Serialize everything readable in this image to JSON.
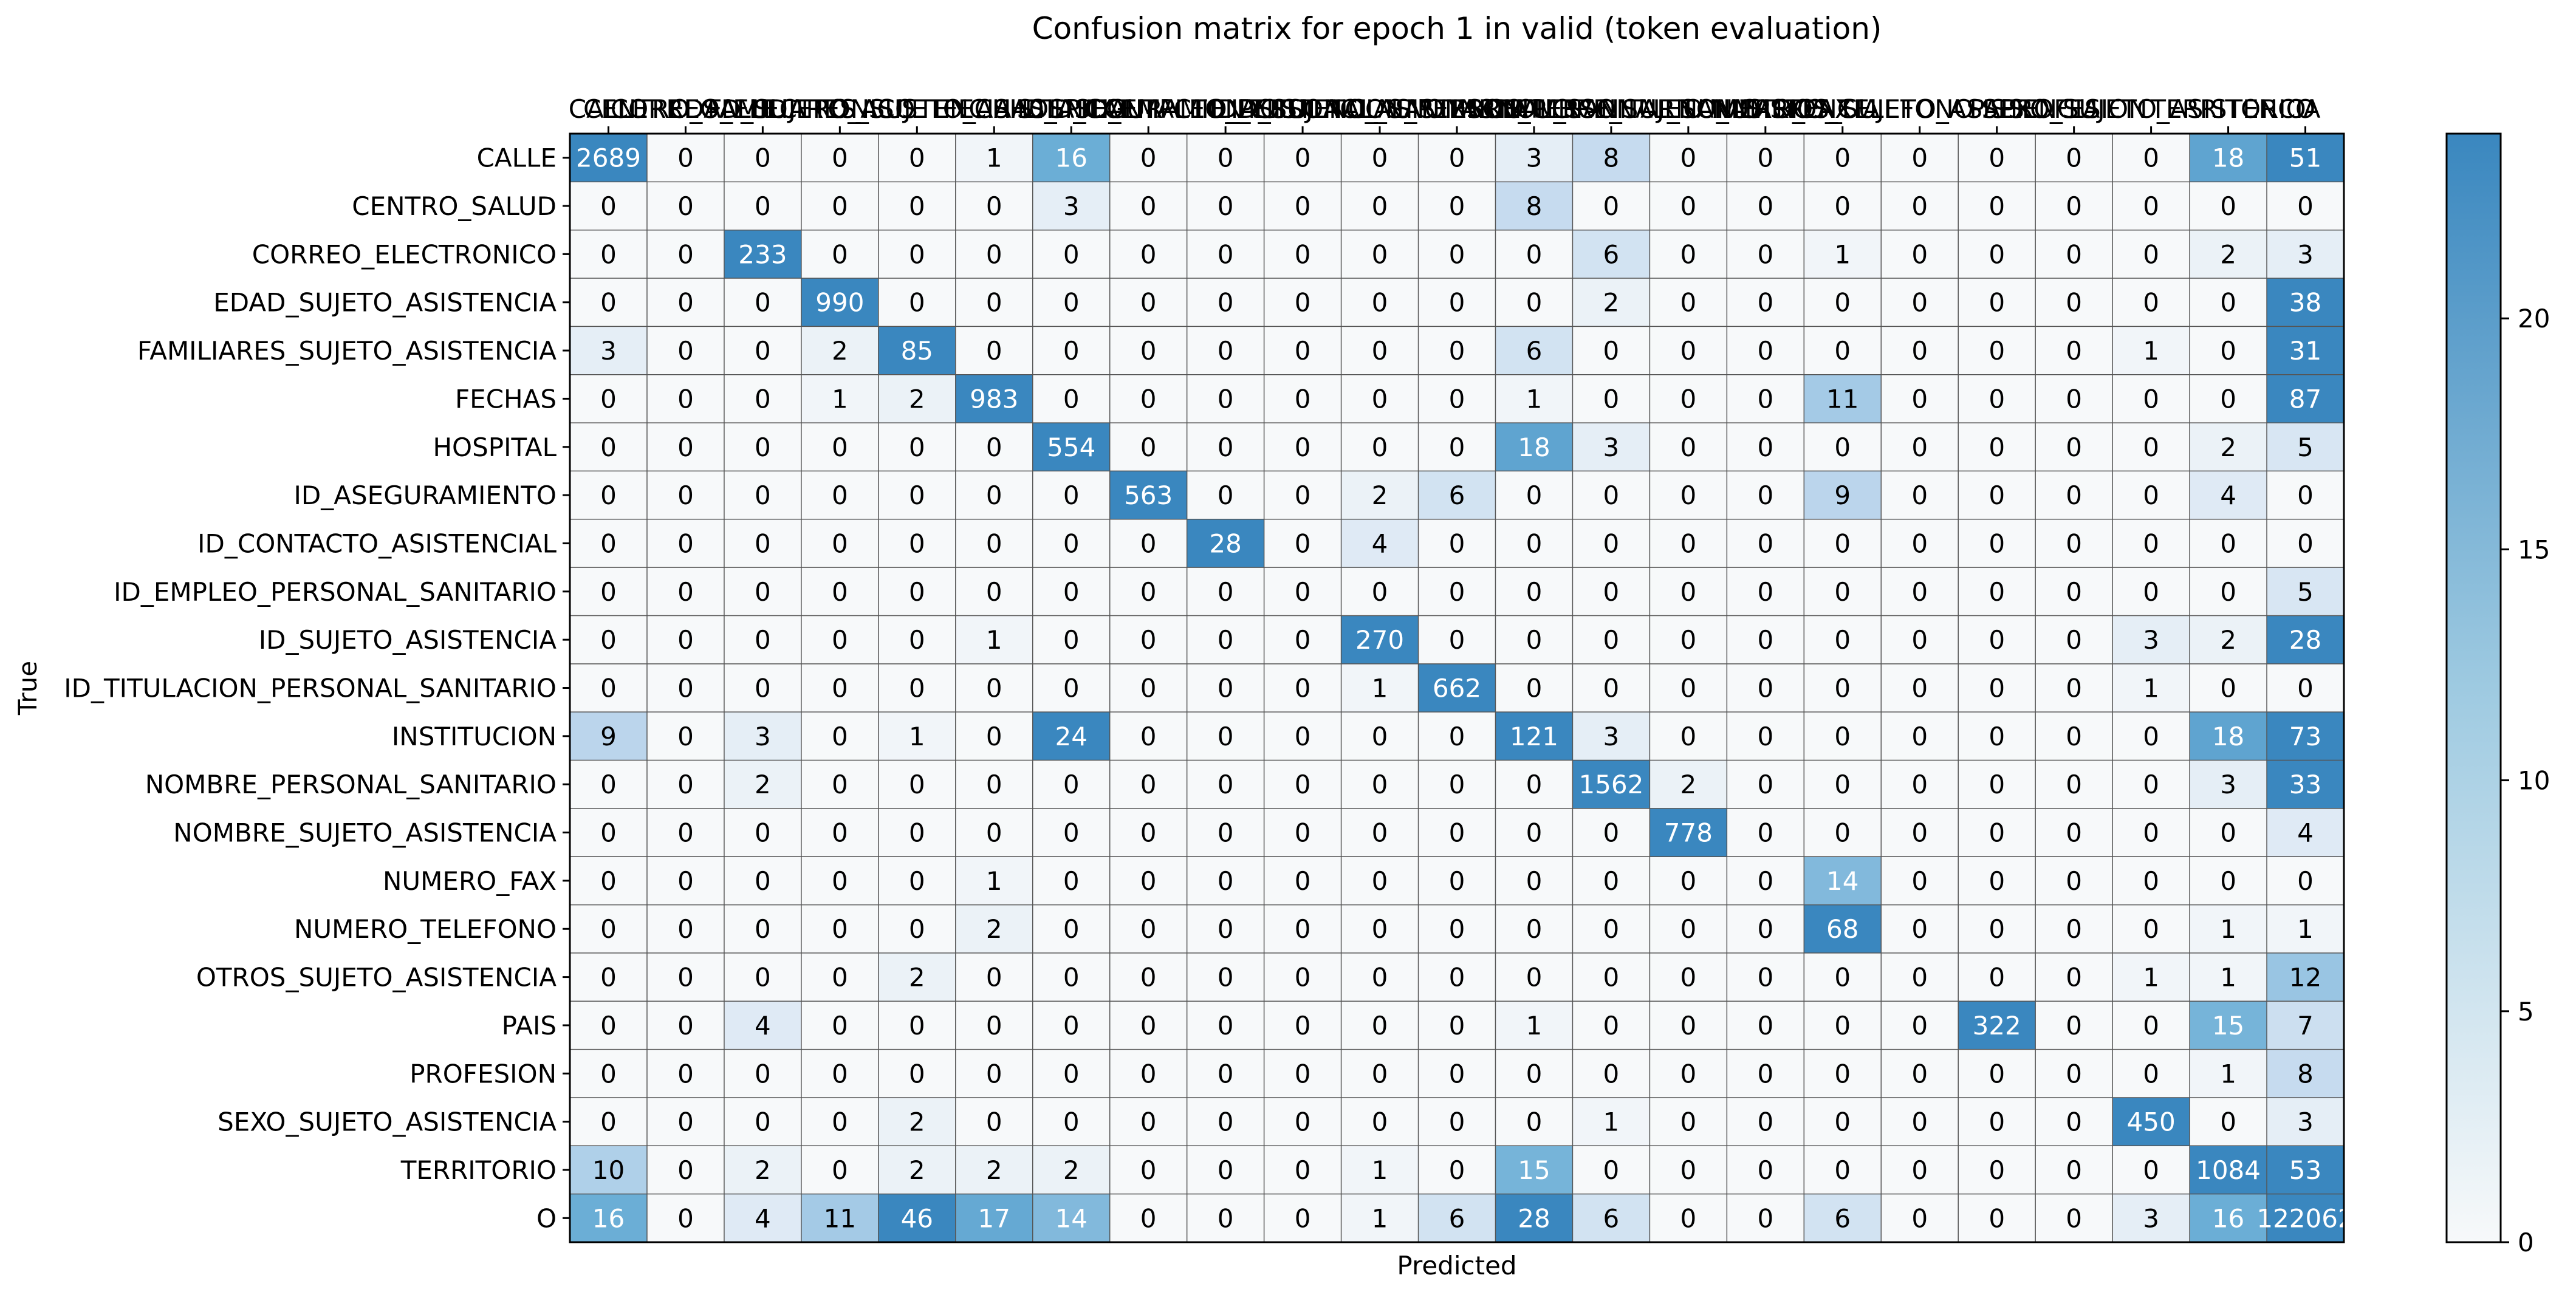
{
  "chart_data": {
    "type": "heatmap",
    "title": "Confusion matrix for epoch 1 in valid (token evaluation)",
    "xlabel": "Predicted",
    "ylabel": "True",
    "x_tick_position": "top",
    "grid": true,
    "colormap": [
      "#f7f9fa",
      "#3a87bf"
    ],
    "colorbar": {
      "range": [
        0,
        24
      ],
      "ticks": [
        "0",
        "5",
        "10",
        "15",
        "20"
      ]
    },
    "labels": [
      "CALLE",
      "CENTRO_SALUD",
      "CORREO_ELECTRONICO",
      "EDAD_SUJETO_ASISTENCIA",
      "FAMILIARES_SUJETO_ASISTENCIA",
      "FECHAS",
      "HOSPITAL",
      "ID_ASEGURAMIENTO",
      "ID_CONTACTO_ASISTENCIAL",
      "ID_EMPLEO_PERSONAL_SANITARIO",
      "ID_SUJETO_ASISTENCIA",
      "ID_TITULACION_PERSONAL_SANITARIO",
      "INSTITUCION",
      "NOMBRE_PERSONAL_SANITARIO",
      "NOMBRE_SUJETO_ASISTENCIA",
      "NUMERO_FAX",
      "NUMERO_TELEFONO",
      "OTROS_SUJETO_ASISTENCIA",
      "PAIS",
      "PROFESION",
      "SEXO_SUJETO_ASISTENCIA",
      "TERRITORIO",
      "O"
    ],
    "matrix": [
      [
        2689,
        0,
        0,
        0,
        0,
        1,
        16,
        0,
        0,
        0,
        0,
        0,
        3,
        8,
        0,
        0,
        0,
        0,
        0,
        0,
        0,
        18,
        51
      ],
      [
        0,
        0,
        0,
        0,
        0,
        0,
        3,
        0,
        0,
        0,
        0,
        0,
        8,
        0,
        0,
        0,
        0,
        0,
        0,
        0,
        0,
        0,
        0
      ],
      [
        0,
        0,
        233,
        0,
        0,
        0,
        0,
        0,
        0,
        0,
        0,
        0,
        0,
        6,
        0,
        0,
        1,
        0,
        0,
        0,
        0,
        2,
        3
      ],
      [
        0,
        0,
        0,
        990,
        0,
        0,
        0,
        0,
        0,
        0,
        0,
        0,
        0,
        2,
        0,
        0,
        0,
        0,
        0,
        0,
        0,
        0,
        38
      ],
      [
        3,
        0,
        0,
        2,
        85,
        0,
        0,
        0,
        0,
        0,
        0,
        0,
        6,
        0,
        0,
        0,
        0,
        0,
        0,
        0,
        1,
        0,
        31
      ],
      [
        0,
        0,
        0,
        1,
        2,
        983,
        0,
        0,
        0,
        0,
        0,
        0,
        1,
        0,
        0,
        0,
        11,
        0,
        0,
        0,
        0,
        0,
        87
      ],
      [
        0,
        0,
        0,
        0,
        0,
        0,
        554,
        0,
        0,
        0,
        0,
        0,
        18,
        3,
        0,
        0,
        0,
        0,
        0,
        0,
        0,
        2,
        5
      ],
      [
        0,
        0,
        0,
        0,
        0,
        0,
        0,
        563,
        0,
        0,
        2,
        6,
        0,
        0,
        0,
        0,
        9,
        0,
        0,
        0,
        0,
        4,
        0
      ],
      [
        0,
        0,
        0,
        0,
        0,
        0,
        0,
        0,
        28,
        0,
        4,
        0,
        0,
        0,
        0,
        0,
        0,
        0,
        0,
        0,
        0,
        0,
        0
      ],
      [
        0,
        0,
        0,
        0,
        0,
        0,
        0,
        0,
        0,
        0,
        0,
        0,
        0,
        0,
        0,
        0,
        0,
        0,
        0,
        0,
        0,
        0,
        5
      ],
      [
        0,
        0,
        0,
        0,
        0,
        1,
        0,
        0,
        0,
        0,
        270,
        0,
        0,
        0,
        0,
        0,
        0,
        0,
        0,
        0,
        3,
        2,
        28
      ],
      [
        0,
        0,
        0,
        0,
        0,
        0,
        0,
        0,
        0,
        0,
        1,
        662,
        0,
        0,
        0,
        0,
        0,
        0,
        0,
        0,
        1,
        0,
        0
      ],
      [
        9,
        0,
        3,
        0,
        1,
        0,
        24,
        0,
        0,
        0,
        0,
        0,
        121,
        3,
        0,
        0,
        0,
        0,
        0,
        0,
        0,
        18,
        73
      ],
      [
        0,
        0,
        2,
        0,
        0,
        0,
        0,
        0,
        0,
        0,
        0,
        0,
        0,
        1562,
        2,
        0,
        0,
        0,
        0,
        0,
        0,
        3,
        33
      ],
      [
        0,
        0,
        0,
        0,
        0,
        0,
        0,
        0,
        0,
        0,
        0,
        0,
        0,
        0,
        778,
        0,
        0,
        0,
        0,
        0,
        0,
        0,
        4
      ],
      [
        0,
        0,
        0,
        0,
        0,
        1,
        0,
        0,
        0,
        0,
        0,
        0,
        0,
        0,
        0,
        0,
        14,
        0,
        0,
        0,
        0,
        0,
        0
      ],
      [
        0,
        0,
        0,
        0,
        0,
        2,
        0,
        0,
        0,
        0,
        0,
        0,
        0,
        0,
        0,
        0,
        68,
        0,
        0,
        0,
        0,
        1,
        1
      ],
      [
        0,
        0,
        0,
        0,
        2,
        0,
        0,
        0,
        0,
        0,
        0,
        0,
        0,
        0,
        0,
        0,
        0,
        0,
        0,
        0,
        1,
        1,
        12
      ],
      [
        0,
        0,
        4,
        0,
        0,
        0,
        0,
        0,
        0,
        0,
        0,
        0,
        1,
        0,
        0,
        0,
        0,
        0,
        322,
        0,
        0,
        15,
        7
      ],
      [
        0,
        0,
        0,
        0,
        0,
        0,
        0,
        0,
        0,
        0,
        0,
        0,
        0,
        0,
        0,
        0,
        0,
        0,
        0,
        0,
        0,
        1,
        8
      ],
      [
        0,
        0,
        0,
        0,
        2,
        0,
        0,
        0,
        0,
        0,
        0,
        0,
        0,
        1,
        0,
        0,
        0,
        0,
        0,
        0,
        450,
        0,
        3
      ],
      [
        10,
        0,
        2,
        0,
        2,
        2,
        2,
        0,
        0,
        0,
        1,
        0,
        15,
        0,
        0,
        0,
        0,
        0,
        0,
        0,
        0,
        1084,
        53
      ],
      [
        16,
        0,
        4,
        11,
        46,
        17,
        14,
        0,
        0,
        0,
        1,
        6,
        28,
        6,
        0,
        0,
        6,
        0,
        0,
        0,
        3,
        16,
        122062
      ]
    ]
  }
}
